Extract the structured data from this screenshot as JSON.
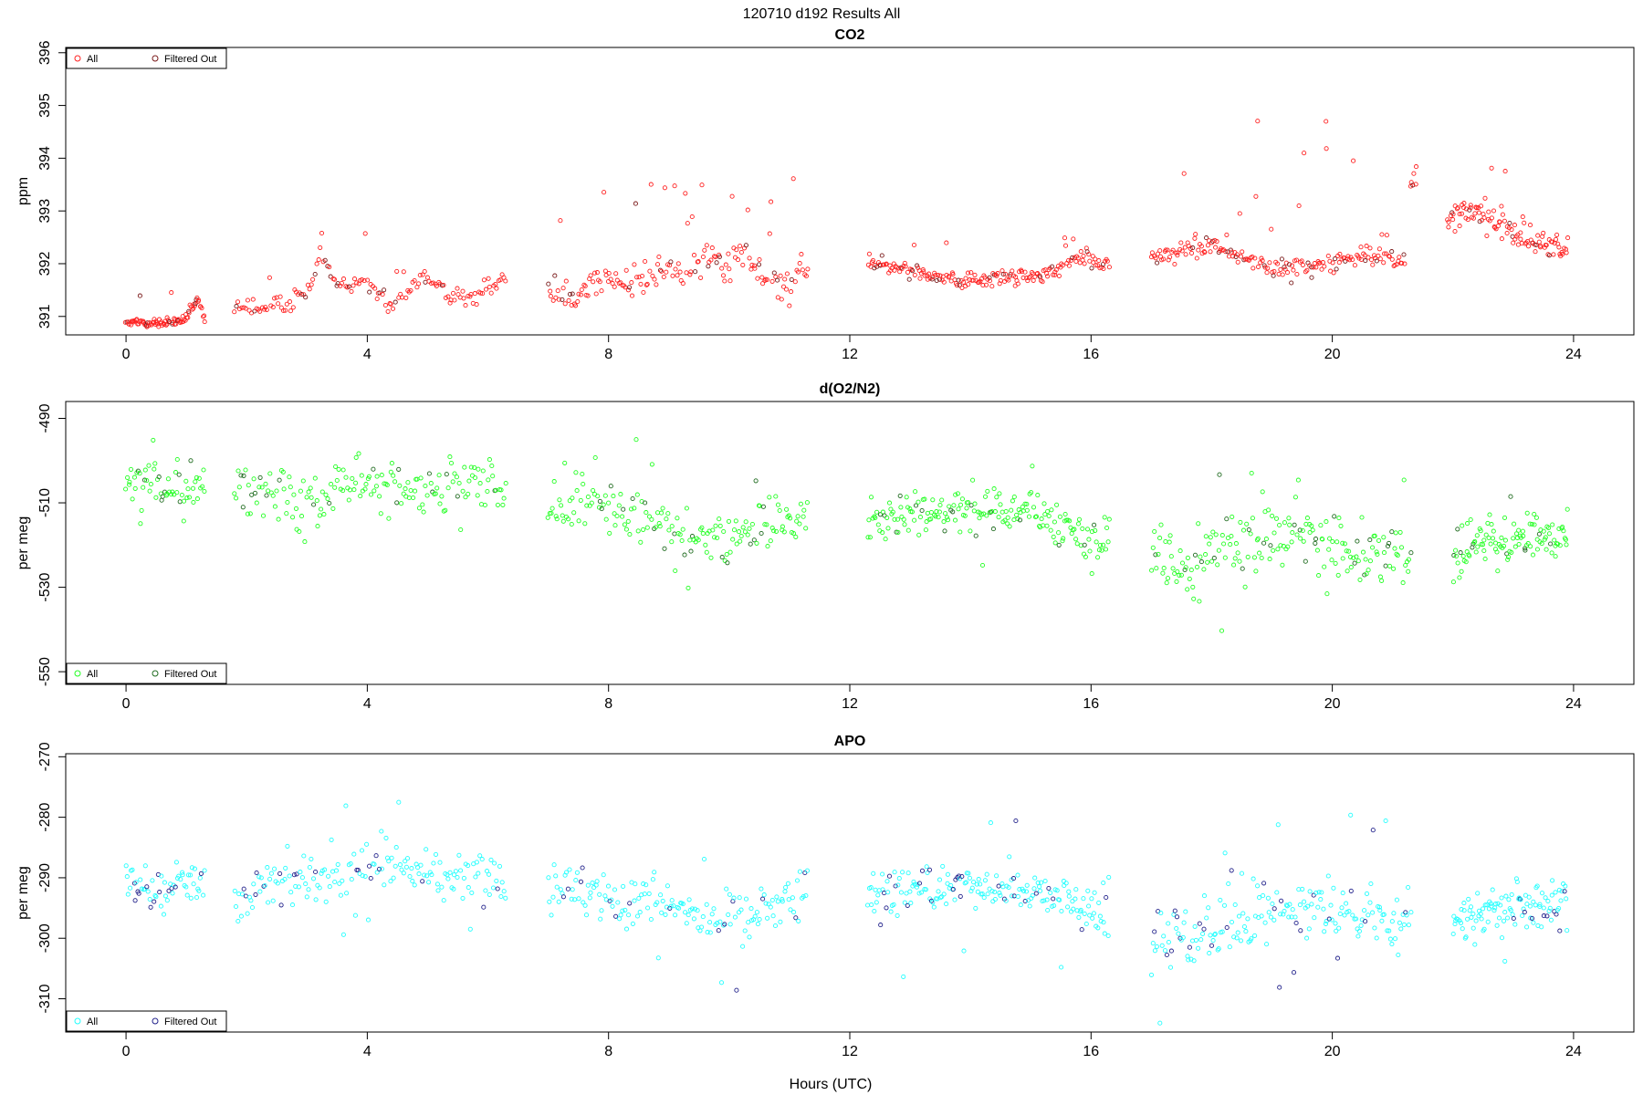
{
  "page_title": "120710   d192   Results All",
  "xlabel": "Hours (UTC)",
  "colors": {
    "co2_all": "#ff2020",
    "co2_filtered": "#7a1a1a",
    "o2_all": "#22ff22",
    "o2_filtered": "#1f6b1f",
    "apo_all": "#22ffff",
    "apo_filtered": "#22228b",
    "axis": "#000000"
  },
  "chart_data": [
    {
      "id": "co2",
      "type": "scatter",
      "title": "CO2",
      "ylabel": "ppm",
      "xlim": [
        -1.0,
        25.0
      ],
      "ylim": [
        390.65,
        396.1
      ],
      "xticks": [
        0,
        4,
        8,
        12,
        16,
        20,
        24
      ],
      "yticks": [
        391,
        392,
        393,
        394,
        395,
        396
      ],
      "legend": {
        "position": "top-left",
        "entries": [
          "All",
          "Filtered Out"
        ]
      },
      "series": [
        {
          "name": "All",
          "color": "#ff2020",
          "segments": [
            {
              "x": [
                0.0,
                0.5,
                0.9,
                1.05,
                1.2,
                1.3
              ],
              "y": [
                390.88,
                390.88,
                390.9,
                391.05,
                391.3,
                390.95
              ],
              "noise": 0.08,
              "spike": 0.7,
              "n": 90
            },
            {
              "x": [
                1.8,
                2.6,
                3.05,
                3.2,
                3.5,
                3.9,
                4.4,
                4.9,
                5.4,
                5.8,
                6.3
              ],
              "y": [
                391.15,
                391.2,
                391.5,
                392.3,
                391.6,
                391.7,
                391.2,
                391.8,
                391.35,
                391.4,
                391.7
              ],
              "noise": 0.18,
              "spike": 0.9,
              "n": 150
            },
            {
              "x": [
                7.0,
                7.5,
                8.0,
                8.4,
                8.9,
                9.3,
                9.7,
                10.0,
                10.3,
                10.6,
                11.0,
                11.3
              ],
              "y": [
                391.55,
                391.45,
                391.7,
                391.65,
                391.9,
                391.8,
                392.1,
                392.0,
                392.2,
                391.7,
                391.6,
                392.0
              ],
              "noise": 0.3,
              "spike": 2.4,
              "n": 170
            },
            {
              "x": [
                12.3,
                12.8,
                13.3,
                13.8,
                14.3,
                14.8,
                15.3,
                15.8,
                16.3
              ],
              "y": [
                392.0,
                391.95,
                391.75,
                391.65,
                391.7,
                391.75,
                391.8,
                392.1,
                392.0
              ],
              "noise": 0.15,
              "spike": 0.8,
              "n": 190
            },
            {
              "x": [
                17.0,
                17.6,
                18.0,
                18.5,
                19.0,
                19.5,
                20.0,
                20.5,
                21.0,
                21.2
              ],
              "y": [
                392.1,
                392.3,
                392.3,
                392.1,
                391.95,
                391.95,
                392.0,
                392.15,
                392.1,
                392.05
              ],
              "noise": 0.2,
              "spike": 2.9,
              "n": 190
            },
            {
              "x": [
                21.3,
                21.4
              ],
              "y": [
                393.5,
                393.7
              ],
              "noise": 0.25,
              "spike": 0.6,
              "n": 6
            },
            {
              "x": [
                21.9,
                22.2,
                22.6,
                23.0,
                23.4,
                23.9
              ],
              "y": [
                392.8,
                393.0,
                392.9,
                392.6,
                392.35,
                392.3
              ],
              "noise": 0.25,
              "spike": 1.3,
              "n": 110
            }
          ]
        },
        {
          "name": "Filtered Out",
          "color": "#7a1a1a",
          "fraction": 0.12
        }
      ]
    },
    {
      "id": "o2n2",
      "type": "scatter",
      "title": "d(O2/N2)",
      "ylabel": "per meg",
      "xlim": [
        -1.0,
        25.0
      ],
      "ylim": [
        -553,
        -486
      ],
      "xticks": [
        0,
        4,
        8,
        12,
        16,
        20,
        24
      ],
      "yticks": [
        -490,
        -510,
        -530,
        -550
      ],
      "legend": {
        "position": "bottom-left",
        "entries": [
          "All",
          "Filtered Out"
        ]
      },
      "series": [
        {
          "name": "All",
          "color": "#22ff22",
          "segments": [
            {
              "x": [
                0.0,
                0.6,
                1.3
              ],
              "y": [
                -505,
                -506,
                -506
              ],
              "noise": 5,
              "spike": 10,
              "n": 60
            },
            {
              "x": [
                1.8,
                2.6,
                3.3,
                3.9,
                4.5,
                5.2,
                5.9,
                6.3
              ],
              "y": [
                -508,
                -507,
                -509,
                -505,
                -506,
                -507,
                -505,
                -510
              ],
              "noise": 6,
              "spike": 14,
              "n": 170
            },
            {
              "x": [
                7.0,
                7.6,
                8.2,
                8.8,
                9.4,
                10.0,
                10.5,
                11.3
              ],
              "y": [
                -510,
                -510,
                -514,
                -513,
                -518,
                -520,
                -516,
                -511
              ],
              "noise": 6,
              "spike": 22,
              "n": 170
            },
            {
              "x": [
                12.3,
                13.0,
                13.7,
                14.5,
                15.3,
                16.0,
                16.3
              ],
              "y": [
                -514,
                -513,
                -511,
                -512,
                -514,
                -518,
                -520
              ],
              "noise": 5,
              "spike": 15,
              "n": 190
            },
            {
              "x": [
                17.0,
                17.7,
                18.3,
                19.0,
                19.7,
                20.3,
                21.0,
                21.3
              ],
              "y": [
                -522,
                -526,
                -520,
                -518,
                -517,
                -520,
                -522,
                -523
              ],
              "noise": 7,
              "spike": 24,
              "n": 190
            },
            {
              "x": [
                22.0,
                22.6,
                23.2,
                23.9
              ],
              "y": [
                -522,
                -519,
                -518,
                -517
              ],
              "noise": 5,
              "spike": 12,
              "n": 110
            }
          ]
        },
        {
          "name": "Filtered Out",
          "color": "#1f6b1f",
          "fraction": 0.12
        }
      ]
    },
    {
      "id": "apo",
      "type": "scatter",
      "title": "APO",
      "ylabel": "per meg",
      "xlim": [
        -1.0,
        25.0
      ],
      "ylim": [
        -315.5,
        -269.5
      ],
      "xticks": [
        0,
        4,
        8,
        12,
        16,
        20,
        24
      ],
      "yticks": [
        -270,
        -280,
        -290,
        -300,
        -310
      ],
      "legend": {
        "position": "bottom-left",
        "entries": [
          "All",
          "Filtered Out"
        ]
      },
      "series": [
        {
          "name": "All",
          "color": "#22ffff",
          "segments": [
            {
              "x": [
                0.0,
                0.6,
                1.3
              ],
              "y": [
                -290,
                -292,
                -290
              ],
              "noise": 3.5,
              "spike": 8,
              "n": 60
            },
            {
              "x": [
                1.8,
                2.6,
                3.3,
                3.9,
                4.5,
                5.2,
                5.9,
                6.3
              ],
              "y": [
                -293,
                -291,
                -291,
                -289,
                -289,
                -290,
                -289,
                -292
              ],
              "noise": 4,
              "spike": 12,
              "n": 170
            },
            {
              "x": [
                7.0,
                7.6,
                8.2,
                8.8,
                9.4,
                10.0,
                10.5,
                11.3
              ],
              "y": [
                -292,
                -291,
                -294,
                -293,
                -296,
                -297,
                -295,
                -292
              ],
              "noise": 4,
              "spike": 10,
              "n": 170
            },
            {
              "x": [
                12.3,
                13.0,
                13.7,
                14.5,
                15.3,
                16.0,
                16.3
              ],
              "y": [
                -293,
                -292,
                -291,
                -292,
                -293,
                -295,
                -298
              ],
              "noise": 3.5,
              "spike": 14,
              "n": 190
            },
            {
              "x": [
                17.0,
                17.7,
                18.3,
                19.0,
                19.7,
                20.3,
                21.0,
                21.3
              ],
              "y": [
                -298,
                -301,
                -298,
                -295,
                -294,
                -296,
                -297,
                -298
              ],
              "noise": 5,
              "spike": 16,
              "n": 190
            },
            {
              "x": [
                22.0,
                22.6,
                23.2,
                23.9
              ],
              "y": [
                -297,
                -295,
                -295,
                -294
              ],
              "noise": 3.5,
              "spike": 10,
              "n": 110
            }
          ]
        },
        {
          "name": "Filtered Out",
          "color": "#22228b",
          "fraction": 0.12
        }
      ]
    }
  ]
}
